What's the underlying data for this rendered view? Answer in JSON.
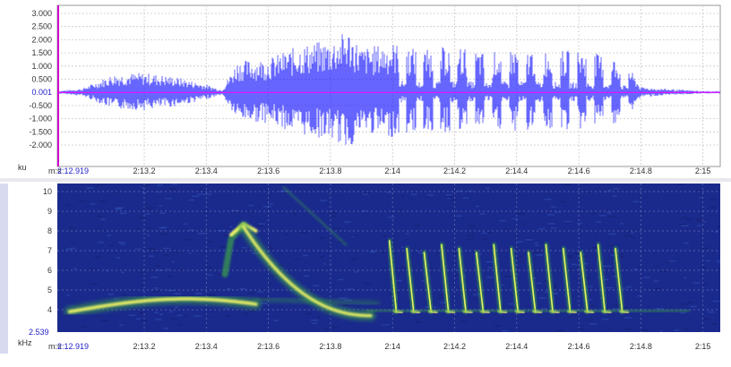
{
  "waveform": {
    "y_ticks": [
      "3.000",
      "2.500",
      "2.000",
      "1.500",
      "1.000",
      "0.500",
      "0.001",
      "-0.500",
      "-1.000",
      "-1.500",
      "-2.000"
    ],
    "unit": "ku",
    "x_unit": "m:s",
    "x_start": "2:12.919",
    "x_ticks": [
      "2:13.2",
      "2:13.4",
      "2:13.6",
      "2:13.8",
      "2:14",
      "2:14.2",
      "2:14.4",
      "2:14.6",
      "2:14.8",
      "2:15"
    ],
    "colors": {
      "wave": "#0000ff",
      "zero_line": "#ff00ff",
      "grid": "#c8c8c8",
      "cursor": "#cc00cc",
      "bg": "#ffffff"
    }
  },
  "spectrogram": {
    "y_ticks": [
      "10",
      "9",
      "8",
      "7",
      "6",
      "5",
      "4"
    ],
    "y_min_label": "2.539",
    "unit": "kHz",
    "x_unit": "m:s",
    "x_start": "2:12.919",
    "x_ticks": [
      "2:13.2",
      "2:13.4",
      "2:13.6",
      "2:13.8",
      "2:14",
      "2:14.2",
      "2:14.4",
      "2:14.6",
      "2:14.8",
      "2:15"
    ],
    "colors": {
      "bg": "#1a2a8c",
      "energy_low": "#3aa04a",
      "energy_high": "#ffff66",
      "grid": "#8a90c0"
    }
  },
  "chart_data": {
    "type": "area",
    "title": "",
    "xlabel": "m:s",
    "ylabel": "ku",
    "x": [
      2.919,
      3.0,
      3.1,
      3.2,
      3.3,
      3.4,
      3.45,
      3.5,
      3.6,
      3.7,
      3.8,
      3.86,
      3.9,
      4.0,
      4.1,
      4.2,
      4.3,
      4.4,
      4.5,
      4.6,
      4.7,
      4.76,
      4.8,
      5.0
    ],
    "series": [
      {
        "values": [
          0.05,
          0.15,
          0.7,
          0.75,
          0.6,
          0.3,
          0.1,
          1.2,
          1.3,
          1.8,
          2.0,
          2.4,
          1.7,
          1.9,
          1.6,
          1.8,
          1.5,
          1.7,
          1.6,
          1.6,
          1.4,
          1.0,
          0.2,
          0.05
        ]
      }
    ],
    "ylim": [
      -2.5,
      3.2
    ]
  }
}
